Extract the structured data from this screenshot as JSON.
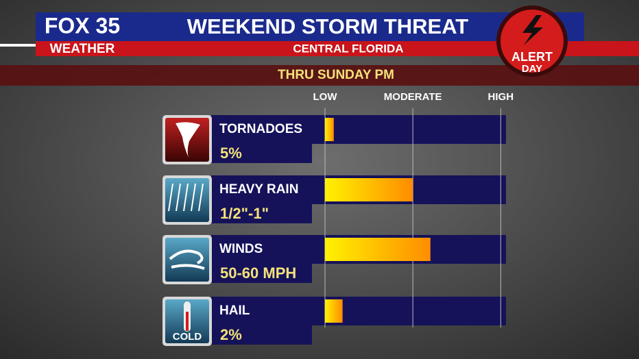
{
  "chart_data": {
    "type": "bar",
    "orientation": "horizontal",
    "logo": {
      "line1": "FOX 35",
      "line2": "WEATHER"
    },
    "title": "WEEKEND STORM THREAT",
    "subtitle": "CENTRAL FLORIDA",
    "period": "THRU SUNDAY PM",
    "badge": {
      "line1": "ALERT",
      "line2": "DAY"
    },
    "icon_label": "COLD",
    "categories": [
      "TORNADOES",
      "HEAVY RAIN",
      "WINDS",
      "HAIL"
    ],
    "details": [
      "5%",
      "1/2\"-1\"",
      "50-60 MPH",
      "2%"
    ],
    "values": [
      5,
      50,
      60,
      10
    ],
    "xlim": [
      0,
      103
    ],
    "xticks": [
      {
        "value": 0,
        "label": "LOW"
      },
      {
        "value": 50,
        "label": "MODERATE"
      },
      {
        "value": 100,
        "label": "HIGH"
      }
    ],
    "grid": true,
    "colors": [
      "#fff200",
      "#ff8c00"
    ]
  }
}
